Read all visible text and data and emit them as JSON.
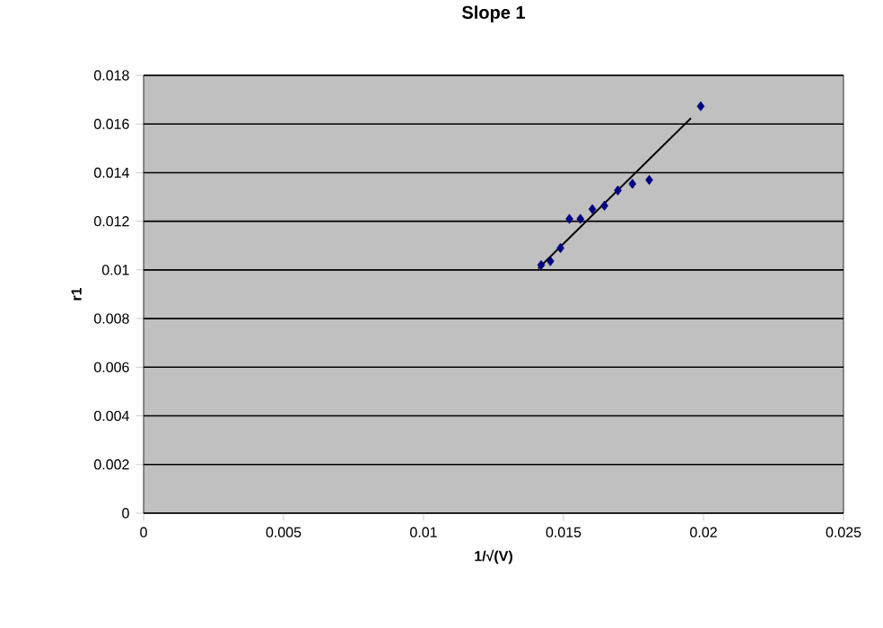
{
  "chart_data": {
    "type": "scatter",
    "title": "Slope 1",
    "xlabel": "1/√(V)",
    "ylabel": "r1",
    "series": [
      {
        "color": "#000080",
        "marker": "diamond",
        "x": [
          0.0142,
          0.01453,
          0.01489,
          0.01521,
          0.0156,
          0.01603,
          0.01646,
          0.01694,
          0.01746,
          0.01806,
          0.0199
        ],
        "values": [
          0.0102,
          0.01036,
          0.0109,
          0.0121,
          0.0121,
          0.0125,
          0.01264,
          0.01327,
          0.01354,
          0.0137,
          0.01673
        ]
      },
      {
        "type": "line",
        "color": "#000000",
        "x": [
          0.0141,
          0.01955
        ],
        "values": [
          0.01006,
          0.01624
        ]
      }
    ],
    "xlim": [
      0,
      0.025
    ],
    "xticks": [
      0,
      0.005,
      0.01,
      0.015,
      0.02,
      0.025
    ],
    "ylim": [
      0,
      0.018
    ],
    "yticks": [
      0,
      0.002,
      0.004,
      0.006,
      0.008,
      0.01,
      0.012,
      0.014,
      0.016,
      0.018
    ],
    "grid": "y"
  }
}
